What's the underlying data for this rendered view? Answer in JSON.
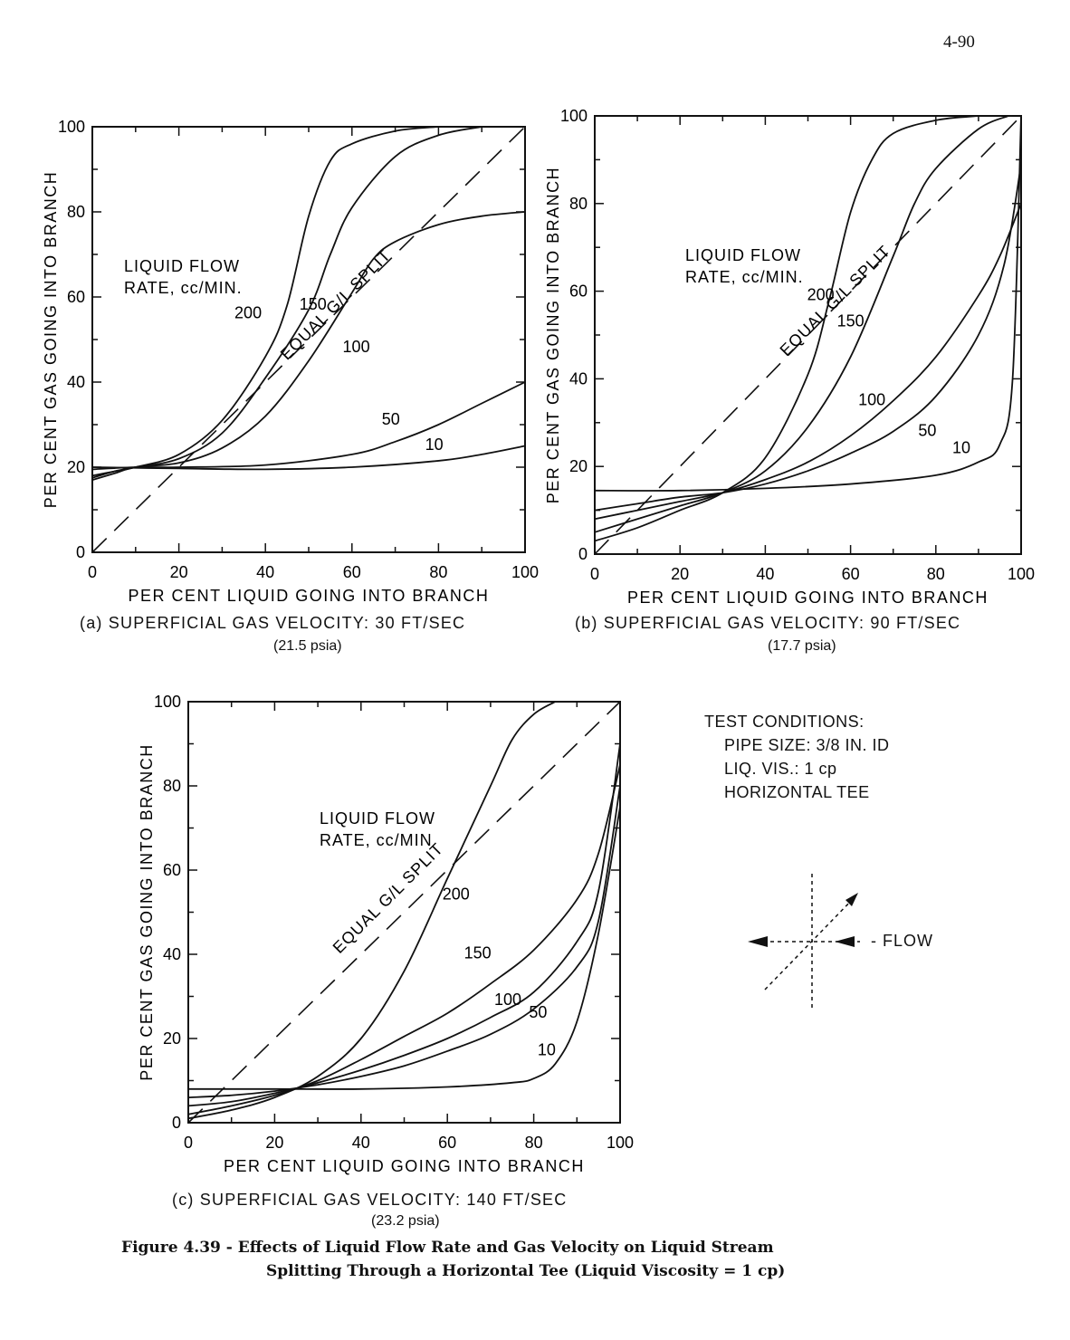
{
  "page_number": "4-90",
  "figure_caption": {
    "line1": "Figure 4.39 - Effects of Liquid Flow Rate and Gas Velocity on Liquid Stream",
    "line2": "Splitting Through a Horizontal Tee (Liquid Viscosity = 1 cp)"
  },
  "test_conditions": {
    "title": "TEST CONDITIONS:",
    "items": [
      "PIPE SIZE: 3/8 IN. ID",
      "LIQ. VIS.: 1 cp",
      "HORIZONTAL TEE"
    ]
  },
  "flow_diagram": {
    "label": "- FLOW"
  },
  "chart_data": [
    {
      "type": "line",
      "panel": "(a)",
      "xlabel": "PER CENT LIQUID GOING INTO BRANCH",
      "ylabel": "PER CENT GAS GOING INTO BRANCH",
      "xlim": [
        0,
        100
      ],
      "ylim": [
        0,
        100
      ],
      "xticks": [
        0,
        20,
        40,
        60,
        80,
        100
      ],
      "yticks": [
        0,
        20,
        40,
        60,
        80,
        100
      ],
      "caption": "(a)   SUPERFICIAL GAS VELOCITY:  30 FT/SEC",
      "caption2": "(21.5 psia)",
      "legend_title": [
        "LIQUID FLOW",
        "RATE, cc/MIN."
      ],
      "diagonal_label": "EQUAL G/L SPLIT",
      "series": [
        {
          "name": "200",
          "points": [
            [
              0,
              18
            ],
            [
              5,
              19
            ],
            [
              10,
              20
            ],
            [
              20,
              23
            ],
            [
              30,
              31
            ],
            [
              40,
              46
            ],
            [
              45,
              58
            ],
            [
              50,
              79
            ],
            [
              55,
              92
            ],
            [
              60,
              96
            ],
            [
              70,
              99
            ],
            [
              80,
              100
            ]
          ]
        },
        {
          "name": "150",
          "points": [
            [
              0,
              17.5
            ],
            [
              5,
              19
            ],
            [
              10,
              20
            ],
            [
              20,
              22
            ],
            [
              30,
              28
            ],
            [
              40,
              41
            ],
            [
              50,
              57
            ],
            [
              55,
              70
            ],
            [
              60,
              81
            ],
            [
              70,
              93
            ],
            [
              80,
              98
            ],
            [
              90,
              100
            ]
          ]
        },
        {
          "name": "100",
          "points": [
            [
              0,
              17
            ],
            [
              5,
              18.5
            ],
            [
              10,
              20
            ],
            [
              20,
              21
            ],
            [
              30,
              24.5
            ],
            [
              40,
              32
            ],
            [
              50,
              45
            ],
            [
              60,
              61
            ],
            [
              65,
              69
            ],
            [
              70,
              73
            ],
            [
              80,
              77
            ],
            [
              90,
              79
            ],
            [
              100,
              80
            ]
          ]
        },
        {
          "name": "50",
          "points": [
            [
              0,
              19.5
            ],
            [
              10,
              20
            ],
            [
              20,
              20
            ],
            [
              40,
              20.5
            ],
            [
              60,
              23
            ],
            [
              70,
              26
            ],
            [
              80,
              30
            ],
            [
              90,
              35
            ],
            [
              100,
              40
            ]
          ]
        },
        {
          "name": "10",
          "points": [
            [
              0,
              20
            ],
            [
              20,
              19.7
            ],
            [
              40,
              19.5
            ],
            [
              60,
              20
            ],
            [
              80,
              21.5
            ],
            [
              90,
              23
            ],
            [
              100,
              25
            ]
          ]
        }
      ],
      "series_label_positions": {
        "200": [
          36,
          55
        ],
        "150": [
          51,
          57
        ],
        "100": [
          61,
          47
        ],
        "50": [
          69,
          30
        ],
        "10": [
          79,
          24
        ]
      }
    },
    {
      "type": "line",
      "panel": "(b)",
      "xlabel": "PER CENT LIQUID GOING INTO BRANCH",
      "ylabel": "PER CENT GAS GOING INTO BRANCH",
      "xlim": [
        0,
        100
      ],
      "ylim": [
        0,
        100
      ],
      "xticks": [
        0,
        20,
        40,
        60,
        80,
        100
      ],
      "yticks": [
        0,
        20,
        40,
        60,
        80,
        100
      ],
      "caption": "(b)   SUPERFICIAL GAS VELOCITY:   90 FT/SEC",
      "caption2": "(17.7 psia)",
      "legend_title": [
        "LIQUID FLOW",
        "RATE, cc/MIN."
      ],
      "diagonal_label": "EQUAL G/L SPLIT",
      "series": [
        {
          "name": "200",
          "points": [
            [
              0,
              3
            ],
            [
              10,
              6
            ],
            [
              20,
              10
            ],
            [
              30,
              14
            ],
            [
              40,
              22
            ],
            [
              50,
              41
            ],
            [
              55,
              58
            ],
            [
              60,
              78
            ],
            [
              65,
              90
            ],
            [
              70,
              96
            ],
            [
              80,
              99
            ],
            [
              90,
              100
            ]
          ]
        },
        {
          "name": "150",
          "points": [
            [
              0,
              5
            ],
            [
              10,
              8
            ],
            [
              20,
              11
            ],
            [
              30,
              14
            ],
            [
              40,
              19
            ],
            [
              50,
              29
            ],
            [
              60,
              45
            ],
            [
              70,
              68
            ],
            [
              75,
              80
            ],
            [
              80,
              88
            ],
            [
              90,
              97
            ],
            [
              97,
              100
            ]
          ]
        },
        {
          "name": "100",
          "points": [
            [
              0,
              8
            ],
            [
              10,
              10
            ],
            [
              20,
              12
            ],
            [
              30,
              14
            ],
            [
              40,
              17
            ],
            [
              50,
              21
            ],
            [
              60,
              27
            ],
            [
              70,
              35
            ],
            [
              80,
              45
            ],
            [
              90,
              59
            ],
            [
              95,
              68
            ],
            [
              100,
              80
            ]
          ]
        },
        {
          "name": "50",
          "points": [
            [
              0,
              10
            ],
            [
              10,
              11.5
            ],
            [
              20,
              13
            ],
            [
              30,
              14
            ],
            [
              40,
              16
            ],
            [
              50,
              19
            ],
            [
              60,
              23
            ],
            [
              70,
              28
            ],
            [
              80,
              36
            ],
            [
              90,
              50
            ],
            [
              96,
              66
            ],
            [
              100,
              89
            ]
          ]
        },
        {
          "name": "10",
          "points": [
            [
              0,
              14.5
            ],
            [
              20,
              14.5
            ],
            [
              40,
              15
            ],
            [
              60,
              16
            ],
            [
              80,
              18
            ],
            [
              90,
              21
            ],
            [
              95,
              25
            ],
            [
              98,
              40
            ],
            [
              100,
              100
            ]
          ]
        }
      ],
      "series_label_positions": {
        "200": [
          53,
          58
        ],
        "150": [
          60,
          52
        ],
        "100": [
          65,
          34
        ],
        "50": [
          78,
          27
        ],
        "10": [
          86,
          23
        ]
      }
    },
    {
      "type": "line",
      "panel": "(c)",
      "xlabel": "PER CENT LIQUID GOING INTO BRANCH",
      "ylabel": "PER CENT GAS GOING INTO BRANCH",
      "xlim": [
        0,
        100
      ],
      "ylim": [
        0,
        100
      ],
      "xticks": [
        0,
        20,
        40,
        60,
        80,
        100
      ],
      "yticks": [
        0,
        20,
        40,
        60,
        80,
        100
      ],
      "caption": "(c)   SUPERFICIAL GAS VELOCITY:   140 FT/SEC",
      "caption2": "(23.2 psia)",
      "legend_title": [
        "LIQUID FLOW",
        "RATE, cc/MIN"
      ],
      "diagonal_label": "EQUAL G/L SPLIT",
      "series": [
        {
          "name": "200",
          "points": [
            [
              0,
              1
            ],
            [
              10,
              3
            ],
            [
              20,
              6
            ],
            [
              30,
              11
            ],
            [
              40,
              20
            ],
            [
              50,
              36
            ],
            [
              60,
              58
            ],
            [
              70,
              80
            ],
            [
              75,
              91
            ],
            [
              80,
              97
            ],
            [
              85,
              100
            ]
          ]
        },
        {
          "name": "150",
          "points": [
            [
              0,
              2
            ],
            [
              10,
              4
            ],
            [
              20,
              6.5
            ],
            [
              30,
              10
            ],
            [
              40,
              15
            ],
            [
              50,
              20.5
            ],
            [
              60,
              26
            ],
            [
              70,
              33
            ],
            [
              80,
              41
            ],
            [
              90,
              53
            ],
            [
              95,
              64
            ],
            [
              100,
              85
            ]
          ]
        },
        {
          "name": "100",
          "points": [
            [
              0,
              4
            ],
            [
              10,
              5
            ],
            [
              20,
              7
            ],
            [
              30,
              9.5
            ],
            [
              40,
              12.5
            ],
            [
              50,
              16
            ],
            [
              60,
              20
            ],
            [
              70,
              25
            ],
            [
              80,
              31
            ],
            [
              90,
              43
            ],
            [
              95,
              55
            ],
            [
              100,
              90
            ]
          ]
        },
        {
          "name": "50",
          "points": [
            [
              0,
              6
            ],
            [
              10,
              6.5
            ],
            [
              20,
              7.5
            ],
            [
              30,
              9
            ],
            [
              40,
              11
            ],
            [
              50,
              13.5
            ],
            [
              60,
              17
            ],
            [
              70,
              21
            ],
            [
              80,
              27
            ],
            [
              90,
              37
            ],
            [
              95,
              48
            ],
            [
              100,
              80
            ]
          ]
        },
        {
          "name": "10",
          "points": [
            [
              0,
              8
            ],
            [
              20,
              8
            ],
            [
              40,
              8
            ],
            [
              60,
              8.5
            ],
            [
              75,
              9.5
            ],
            [
              80,
              10.5
            ],
            [
              85,
              14
            ],
            [
              90,
              24
            ],
            [
              95,
              45
            ],
            [
              100,
              75
            ]
          ]
        }
      ],
      "series_label_positions": {
        "200": [
          62,
          53
        ],
        "150": [
          67,
          39
        ],
        "100": [
          74,
          28
        ],
        "50": [
          81,
          25
        ],
        "10": [
          83,
          16
        ]
      }
    }
  ]
}
